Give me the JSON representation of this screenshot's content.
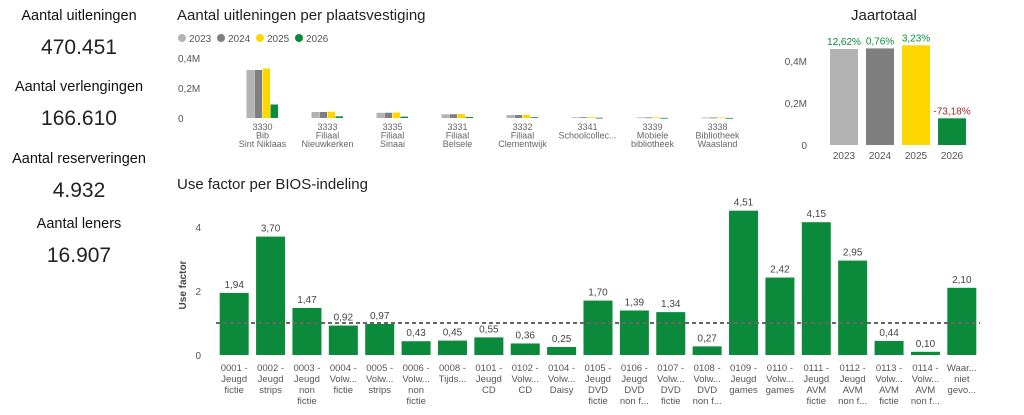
{
  "kpis": [
    {
      "label": "Aantal uitleningen",
      "value": "470.451"
    },
    {
      "label": "Aantal verlengingen",
      "value": "166.610"
    },
    {
      "label": "Aantal reserveringen",
      "value": "4.932"
    },
    {
      "label": "Aantal leners",
      "value": "16.907"
    }
  ],
  "colors": {
    "2023": "#b3b3b3",
    "2024": "#7f7f7f",
    "2025": "#ffd700",
    "2026": "#0a8a3a",
    "use_factor": "#0a8a3a",
    "neg_label": "#a52a2a"
  },
  "chart_data": [
    {
      "type": "bar",
      "title": "Aantal uitleningen per plaatsvestiging",
      "legend": "top-left",
      "ylim": [
        0,
        0.4
      ],
      "y_ticks": [
        "0",
        "0,2M",
        "0,4M"
      ],
      "categories": [
        [
          "3330",
          "Bib",
          "Sint Niklaas"
        ],
        [
          "3333",
          "Filiaal",
          "Nieuwkerken"
        ],
        [
          "3335",
          "Filiaal",
          "Sinaai"
        ],
        [
          "3331",
          "Filiaal",
          "Belsele"
        ],
        [
          "3332",
          "Filiaal",
          "Clementwijk"
        ],
        [
          "3341",
          "Schoolcollec..."
        ],
        [
          "3339",
          "Mobiele",
          "bibliotheek"
        ],
        [
          "3338",
          "Bibliotheek",
          "Waasland"
        ]
      ],
      "series": [
        {
          "name": "2023",
          "values": [
            0.32,
            0.04,
            0.035,
            0.025,
            0.02,
            0.005,
            0.004,
            0.003
          ]
        },
        {
          "name": "2024",
          "values": [
            0.32,
            0.04,
            0.035,
            0.025,
            0.02,
            0.005,
            0.004,
            0.003
          ]
        },
        {
          "name": "2025",
          "values": [
            0.33,
            0.042,
            0.036,
            0.026,
            0.021,
            0.005,
            0.004,
            0.003
          ]
        },
        {
          "name": "2026",
          "values": [
            0.09,
            0.011,
            0.009,
            0.007,
            0.005,
            0.002,
            0.001,
            0.001
          ]
        }
      ]
    },
    {
      "type": "bar",
      "title": "Jaartotaal",
      "ylim": [
        0,
        0.5
      ],
      "y_ticks": [
        "0",
        "0,2M",
        "0,4M"
      ],
      "categories": [
        "2023",
        "2024",
        "2025",
        "2026"
      ],
      "values": [
        0.457,
        0.46,
        0.475,
        0.127
      ],
      "data_labels": [
        "12,62%",
        "0,76%",
        "3,23%",
        "-73,18%"
      ]
    },
    {
      "type": "bar",
      "title": "Use factor per BIOS-indeling",
      "ylabel": "Use factor",
      "ylim": [
        0,
        5
      ],
      "y_ticks": [
        "0",
        "2",
        "4"
      ],
      "reference_line": 1.0,
      "categories": [
        [
          "0001 -",
          "Jeugd",
          "fictie"
        ],
        [
          "0002 -",
          "Jeugd",
          "strips"
        ],
        [
          "0003 -",
          "Jeugd",
          "non",
          "fictie"
        ],
        [
          "0004 -",
          "Volw...",
          "fictie"
        ],
        [
          "0005 -",
          "Volw...",
          "strips"
        ],
        [
          "0006 -",
          "Volw...",
          "non",
          "fictie"
        ],
        [
          "0008 -",
          "Tijds..."
        ],
        [
          "0101 -",
          "Jeugd",
          "CD"
        ],
        [
          "0102 -",
          "Volw...",
          "CD"
        ],
        [
          "0104 -",
          "Volw...",
          "Daisy"
        ],
        [
          "0105 -",
          "Jeugd",
          "DVD",
          "fictie"
        ],
        [
          "0106 -",
          "Jeugd",
          "DVD",
          "non f..."
        ],
        [
          "0107 -",
          "Volw...",
          "DVD",
          "fictie"
        ],
        [
          "0108 -",
          "Volw...",
          "DVD",
          "non f..."
        ],
        [
          "0109 -",
          "Jeugd",
          "games"
        ],
        [
          "0110 -",
          "Volw...",
          "games"
        ],
        [
          "0111 -",
          "Jeugd",
          "AVM",
          "fictie"
        ],
        [
          "0112 -",
          "Jeugd",
          "AVM",
          "non f..."
        ],
        [
          "0113 -",
          "Volw...",
          "AVM",
          "fictie"
        ],
        [
          "0114 -",
          "Volw...",
          "AVM",
          "non f..."
        ],
        [
          "Waar...",
          "niet",
          "gevo..."
        ]
      ],
      "values": [
        1.94,
        3.7,
        1.47,
        0.92,
        0.97,
        0.43,
        0.45,
        0.55,
        0.36,
        0.25,
        1.7,
        1.39,
        1.34,
        0.27,
        4.51,
        2.42,
        4.15,
        2.95,
        0.44,
        0.1,
        2.1
      ],
      "data_labels": [
        "1,94",
        "3,70",
        "1,47",
        "0,92",
        "0,97",
        "0,43",
        "0,45",
        "0,55",
        "0,36",
        "0,25",
        "1,70",
        "1,39",
        "1,34",
        "0,27",
        "4,51",
        "2,42",
        "4,15",
        "2,95",
        "0,44",
        "0,10",
        "2,10"
      ]
    }
  ]
}
